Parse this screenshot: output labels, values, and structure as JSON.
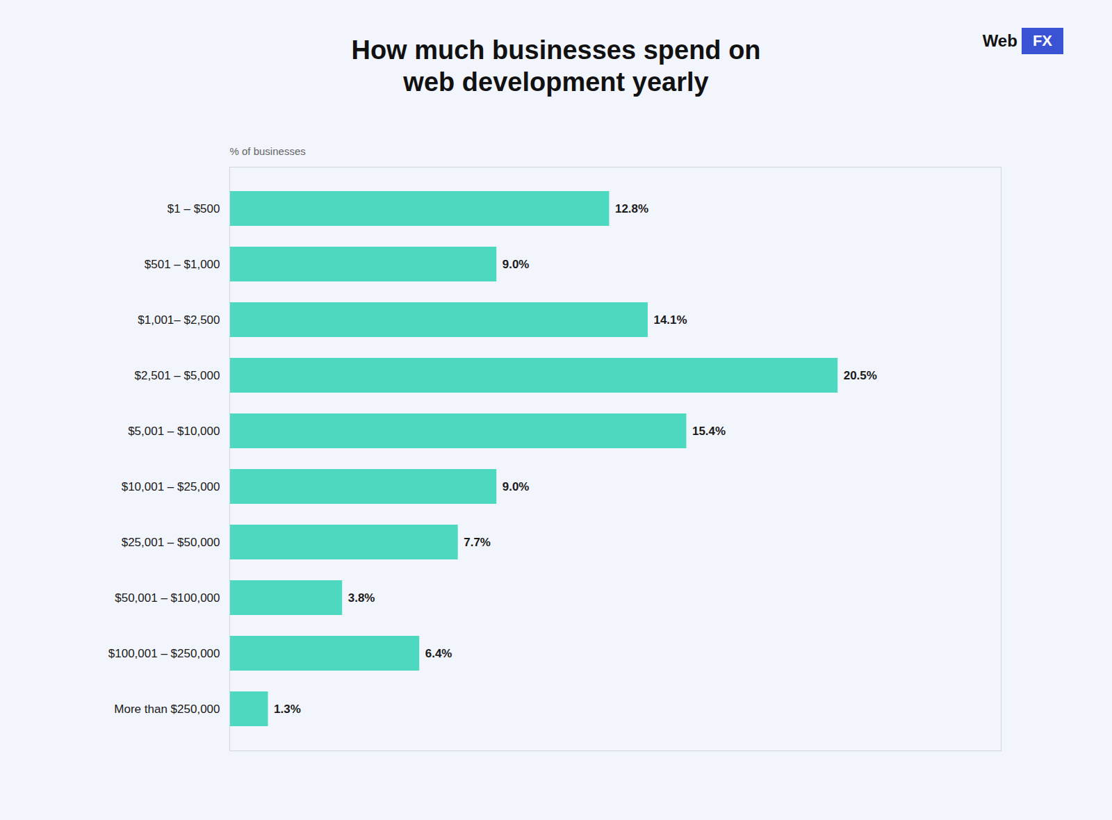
{
  "chart_data": {
    "type": "bar",
    "orientation": "horizontal",
    "title": "How much businesses spend on\nweb development yearly",
    "xlabel": "% of businesses",
    "categories": [
      "$1 – $500",
      "$501 – $1,000",
      "$1,001– $2,500",
      "$2,501 – $5,000",
      "$5,001 – $10,000",
      "$10,001 – $25,000",
      "$25,001 – $50,000",
      "$50,001 – $100,000",
      "$100,001 – $250,000",
      "More than $250,000"
    ],
    "values": [
      12.8,
      9.0,
      14.1,
      20.5,
      15.4,
      9.0,
      7.7,
      3.8,
      6.4,
      1.3
    ],
    "value_labels": [
      "12.8%",
      "9.0%",
      "14.1%",
      "20.5%",
      "15.4%",
      "9.0%",
      "7.7%",
      "3.8%",
      "6.4%",
      "1.3%"
    ],
    "data_labels": true,
    "color": "#4DD9C0",
    "xlim": [
      0,
      26
    ],
    "tick_labels": "y",
    "grid": false,
    "annotations": [
      "Web",
      "FX"
    ]
  }
}
